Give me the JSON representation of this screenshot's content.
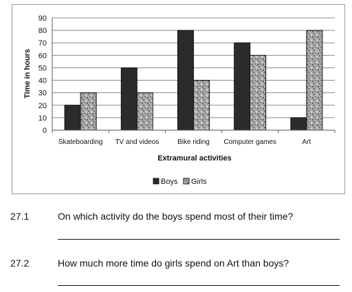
{
  "chart_data": {
    "type": "bar",
    "categories": [
      "Skateboarding",
      "TV and videos",
      "Bike riding",
      "Computer games",
      "Art"
    ],
    "series": [
      {
        "name": "Boys",
        "values": [
          20,
          50,
          80,
          70,
          10
        ],
        "color": "#2b2b2b"
      },
      {
        "name": "Girls",
        "values": [
          30,
          30,
          40,
          60,
          80
        ],
        "color": "#9c9c9c",
        "pattern": "mottled grey"
      }
    ],
    "title": "",
    "xlabel": "Extramural activities",
    "ylabel": "Time in hours",
    "ylim": [
      0,
      90
    ],
    "yticks": [
      0,
      10,
      20,
      30,
      40,
      50,
      60,
      70,
      80,
      90
    ],
    "grid": true,
    "legend": "bottom"
  },
  "questions": [
    {
      "number": "27.1",
      "text": "On which activity do the boys spend most of their time?"
    },
    {
      "number": "27.2",
      "text": "How much more time do girls spend on Art than boys?"
    }
  ]
}
